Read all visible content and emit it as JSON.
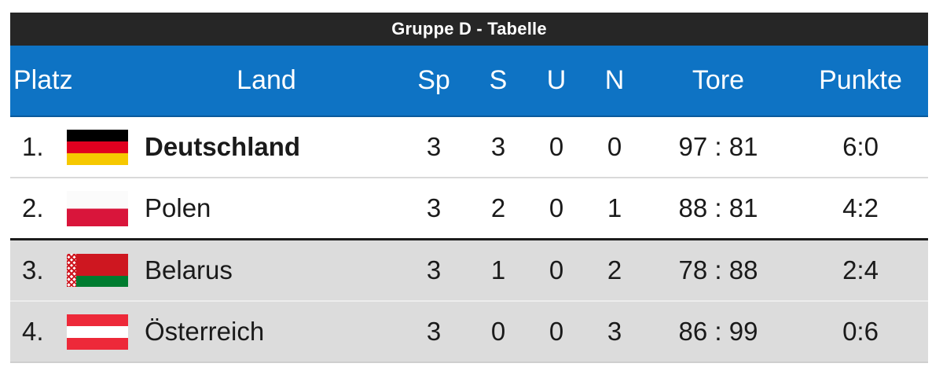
{
  "title": "Gruppe D - Tabelle",
  "columns": {
    "platz": "Platz",
    "land": "Land",
    "sp": "Sp",
    "s": "S",
    "u": "U",
    "n": "N",
    "tore": "Tore",
    "punkte": "Punkte"
  },
  "rows": [
    {
      "platz": "1.",
      "flag": "germany-flag",
      "land": "Deutschland",
      "sp": "3",
      "s": "3",
      "u": "0",
      "n": "0",
      "tore": "97 : 81",
      "punkte": "6:0"
    },
    {
      "platz": "2.",
      "flag": "poland-flag",
      "land": "Polen",
      "sp": "3",
      "s": "2",
      "u": "0",
      "n": "1",
      "tore": "88 : 81",
      "punkte": "4:2"
    },
    {
      "platz": "3.",
      "flag": "belarus-flag",
      "land": "Belarus",
      "sp": "3",
      "s": "1",
      "u": "0",
      "n": "2",
      "tore": "78 : 88",
      "punkte": "2:4"
    },
    {
      "platz": "4.",
      "flag": "austria-flag",
      "land": "Österreich",
      "sp": "3",
      "s": "0",
      "u": "0",
      "n": "3",
      "tore": "86 : 99",
      "punkte": "0:6"
    }
  ],
  "colors": {
    "title_bar": "#262626",
    "header_blue": "#0e73c4",
    "row_gray": "#dcdcdc",
    "dark_separator": "#1c1c1c",
    "text": "#1a1a1a"
  }
}
